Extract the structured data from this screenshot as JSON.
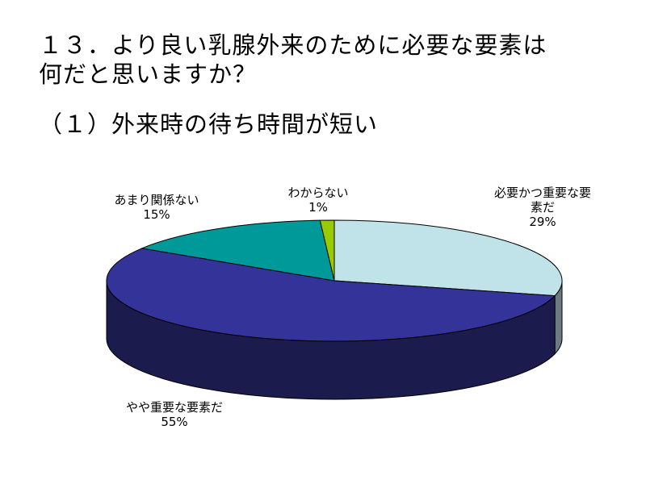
{
  "title": "１３．より良い乳腺外来のために必要な要素は\n何だと思いますか？",
  "subtitle": "（１）外来時の待ち時間が短い",
  "chart_data": {
    "type": "pie",
    "three_d": true,
    "slices": [
      {
        "label_lines": [
          "必要かつ重要な要",
          "素だ"
        ],
        "value": 29,
        "value_text": "29%",
        "color": "#BFE3E8",
        "side_color": "#6B7B7F"
      },
      {
        "label_lines": [
          "やや重要な要素だ"
        ],
        "value": 55,
        "value_text": "55%",
        "color": "#333399",
        "side_color": "#1B1B4E"
      },
      {
        "label_lines": [
          "あまり関係ない"
        ],
        "value": 15,
        "value_text": "15%",
        "color": "#009999",
        "side_color": "#005555"
      },
      {
        "label_lines": [
          "わからない"
        ],
        "value": 1,
        "value_text": "1%",
        "color": "#99CC00",
        "side_color": "#557200"
      }
    ]
  }
}
